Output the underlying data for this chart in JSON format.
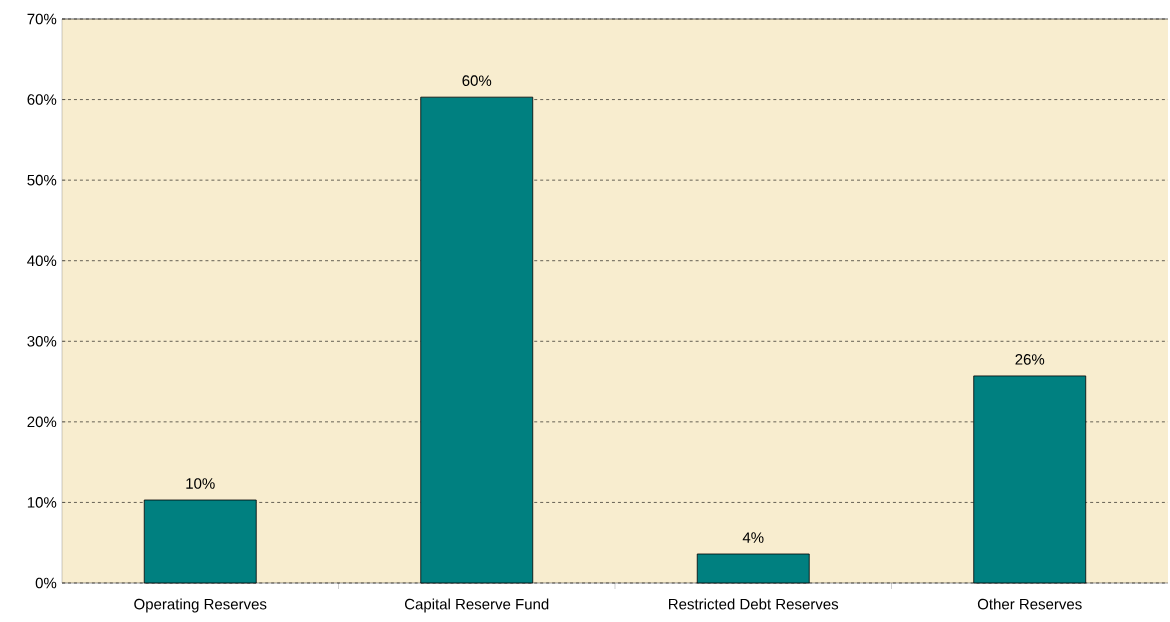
{
  "chart_data": {
    "type": "bar",
    "categories": [
      "Operating Reserves",
      "Capital Reserve Fund",
      "Restricted Debt Reserves",
      "Other Reserves"
    ],
    "values": [
      10.3,
      60.3,
      3.6,
      25.7
    ],
    "value_labels": [
      "10%",
      "60%",
      "4%",
      "26%"
    ],
    "color": "#008080",
    "ylim": [
      0,
      70
    ],
    "yticks": [
      {
        "value": 0,
        "label": "0%"
      },
      {
        "value": 10,
        "label": "10%"
      },
      {
        "value": 20,
        "label": "20%"
      },
      {
        "value": 30,
        "label": "30%"
      },
      {
        "value": 40,
        "label": "40%"
      },
      {
        "value": 50,
        "label": "50%"
      },
      {
        "value": 60,
        "label": "60%"
      },
      {
        "value": 70,
        "label": "70%"
      }
    ],
    "grid": "y"
  }
}
